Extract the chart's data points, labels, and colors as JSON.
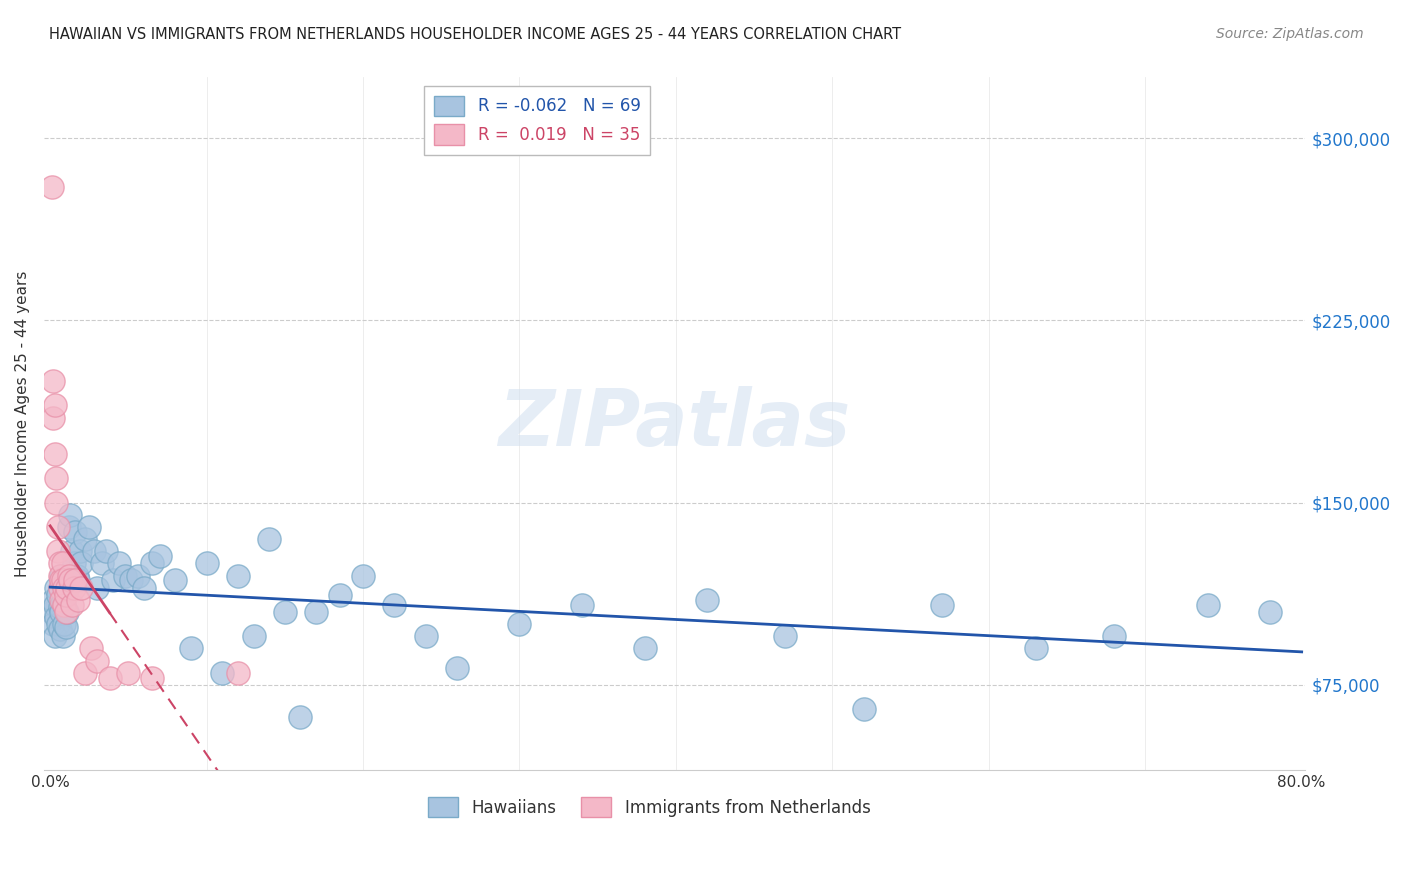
{
  "title": "HAWAIIAN VS IMMIGRANTS FROM NETHERLANDS HOUSEHOLDER INCOME AGES 25 - 44 YEARS CORRELATION CHART",
  "source": "Source: ZipAtlas.com",
  "ylabel": "Householder Income Ages 25 - 44 years",
  "ytick_labels": [
    "$75,000",
    "$150,000",
    "$225,000",
    "$300,000"
  ],
  "ytick_values": [
    75000,
    150000,
    225000,
    300000
  ],
  "ylim": [
    40000,
    325000
  ],
  "xlim": [
    -0.004,
    0.802
  ],
  "legend_blue_r": "-0.062",
  "legend_blue_n": "69",
  "legend_pink_r": "0.019",
  "legend_pink_n": "35",
  "blue_color": "#a8c4e0",
  "blue_edge_color": "#7aaac8",
  "pink_color": "#f4b8c8",
  "pink_edge_color": "#e890a8",
  "blue_line_color": "#2255aa",
  "pink_line_color": "#cc4466",
  "watermark": "ZIPatlas",
  "grid_color": "#cccccc",
  "hawaiians_x": [
    0.001,
    0.002,
    0.002,
    0.003,
    0.003,
    0.004,
    0.004,
    0.005,
    0.005,
    0.006,
    0.006,
    0.007,
    0.007,
    0.008,
    0.008,
    0.009,
    0.009,
    0.01,
    0.01,
    0.011,
    0.012,
    0.013,
    0.014,
    0.015,
    0.016,
    0.017,
    0.018,
    0.019,
    0.02,
    0.022,
    0.025,
    0.028,
    0.03,
    0.033,
    0.036,
    0.04,
    0.044,
    0.048,
    0.052,
    0.056,
    0.06,
    0.065,
    0.07,
    0.08,
    0.09,
    0.1,
    0.11,
    0.12,
    0.13,
    0.14,
    0.15,
    0.16,
    0.17,
    0.185,
    0.2,
    0.22,
    0.24,
    0.26,
    0.3,
    0.34,
    0.38,
    0.42,
    0.47,
    0.52,
    0.57,
    0.63,
    0.68,
    0.74,
    0.78
  ],
  "hawaiians_y": [
    105000,
    100000,
    110000,
    108000,
    95000,
    103000,
    115000,
    100000,
    112000,
    98000,
    107000,
    105000,
    120000,
    110000,
    95000,
    100000,
    108000,
    115000,
    99000,
    105000,
    140000,
    145000,
    130000,
    125000,
    138000,
    120000,
    118000,
    130000,
    125000,
    135000,
    140000,
    130000,
    115000,
    125000,
    130000,
    118000,
    125000,
    120000,
    118000,
    120000,
    115000,
    125000,
    128000,
    118000,
    90000,
    125000,
    80000,
    120000,
    95000,
    135000,
    105000,
    62000,
    105000,
    112000,
    120000,
    108000,
    95000,
    82000,
    100000,
    108000,
    90000,
    110000,
    95000,
    65000,
    108000,
    90000,
    95000,
    108000,
    105000
  ],
  "netherlands_x": [
    0.001,
    0.002,
    0.002,
    0.003,
    0.003,
    0.004,
    0.004,
    0.005,
    0.005,
    0.006,
    0.006,
    0.006,
    0.007,
    0.007,
    0.008,
    0.008,
    0.009,
    0.009,
    0.01,
    0.01,
    0.011,
    0.012,
    0.013,
    0.014,
    0.015,
    0.016,
    0.018,
    0.02,
    0.022,
    0.026,
    0.03,
    0.038,
    0.05,
    0.065,
    0.12
  ],
  "netherlands_y": [
    280000,
    200000,
    185000,
    190000,
    170000,
    160000,
    150000,
    140000,
    130000,
    125000,
    120000,
    115000,
    118000,
    110000,
    125000,
    118000,
    115000,
    108000,
    105000,
    112000,
    115000,
    120000,
    118000,
    108000,
    115000,
    118000,
    110000,
    115000,
    80000,
    90000,
    85000,
    78000,
    80000,
    78000,
    80000
  ]
}
